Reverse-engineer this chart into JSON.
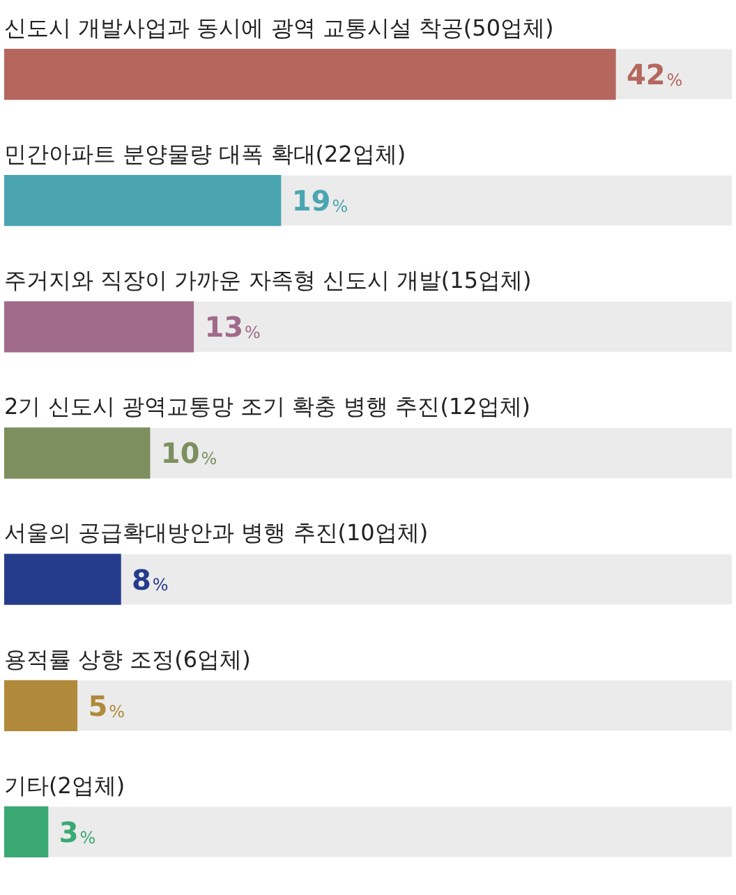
{
  "chart_data": {
    "type": "bar",
    "orientation": "horizontal",
    "categories": [
      "신도시 개발사업과 동시에 광역 교통시설 착공(50업체)",
      "민간아파트 분양물량 대폭 확대(22업체)",
      "주거지와 직장이 가까운 자족형 신도시 개발(15업체)",
      "2기 신도시 광역교통망 조기 확충 병행 추진(12업체)",
      "서울의 공급확대방안과 병행 추진(10업체)",
      "용적률 상향 조정(6업체)",
      "기타(2업체)"
    ],
    "values": [
      42,
      19,
      13,
      10,
      8,
      5,
      3
    ],
    "colors": [
      "#b5675e",
      "#4aa5b0",
      "#a06a8a",
      "#7d8f5e",
      "#253c8c",
      "#b08a3a",
      "#3aa873"
    ],
    "value_labels": [
      "42%",
      "19%",
      "13%",
      "10%",
      "8%",
      "5%",
      "3%"
    ],
    "xlim": [
      0,
      50
    ],
    "tick_labels": "y",
    "legend": false
  }
}
